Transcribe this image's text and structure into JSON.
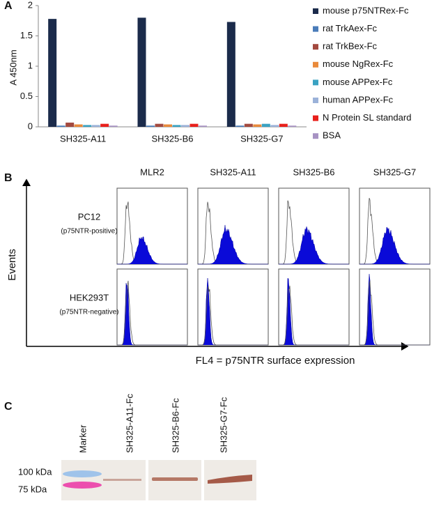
{
  "panel_labels": [
    "A",
    "B",
    "C"
  ],
  "chart_data": {
    "type": "bar",
    "y_label": "A 450nm",
    "categories": [
      "SH325-A11",
      "SH325-B6",
      "SH325-G7"
    ],
    "series": [
      {
        "name": "mouse p75NTRex-Fc",
        "color": "#1b2b4b",
        "values": [
          1.78,
          1.8,
          1.73
        ]
      },
      {
        "name": "rat TrkAex-Fc",
        "color": "#4a7cb9",
        "values": [
          0.02,
          0.02,
          0.02
        ]
      },
      {
        "name": "rat TrkBex-Fc",
        "color": "#a3493f",
        "values": [
          0.07,
          0.05,
          0.05
        ]
      },
      {
        "name": "mouse NgRex-Fc",
        "color": "#e98a3b",
        "values": [
          0.04,
          0.04,
          0.04
        ]
      },
      {
        "name": "mouse APPex-Fc",
        "color": "#3aa2c2",
        "values": [
          0.03,
          0.03,
          0.05
        ]
      },
      {
        "name": "human APPex-Fc",
        "color": "#9bb2d9",
        "values": [
          0.03,
          0.03,
          0.03
        ]
      },
      {
        "name": "N Protein SL standard",
        "color": "#e8201c",
        "values": [
          0.05,
          0.05,
          0.05
        ]
      },
      {
        "name": "BSA",
        "color": "#a792c3",
        "values": [
          0.02,
          0.02,
          0.02
        ]
      }
    ],
    "ylim": [
      0,
      2
    ],
    "yticks": [
      0,
      0.5,
      1,
      1.5,
      2
    ],
    "grid": false,
    "legend": "right"
  },
  "flow": {
    "columns": [
      "MLR2",
      "SH325-A11",
      "SH325-B6",
      "SH325-G7"
    ],
    "rows": [
      {
        "label": "PC12",
        "note": "(p75NTR-positive)"
      },
      {
        "label": "HEK293T",
        "note": "(p75NTR-negative)"
      }
    ],
    "y_label": "Events",
    "x_label": "FL4 = p75NTR surface expression"
  },
  "blot": {
    "lanes": [
      "Marker",
      "SH325-A11-Fc",
      "SH325-B6-Fc",
      "SH325-G7-Fc"
    ],
    "markers": [
      "100 kDa",
      "75 kDa"
    ]
  }
}
